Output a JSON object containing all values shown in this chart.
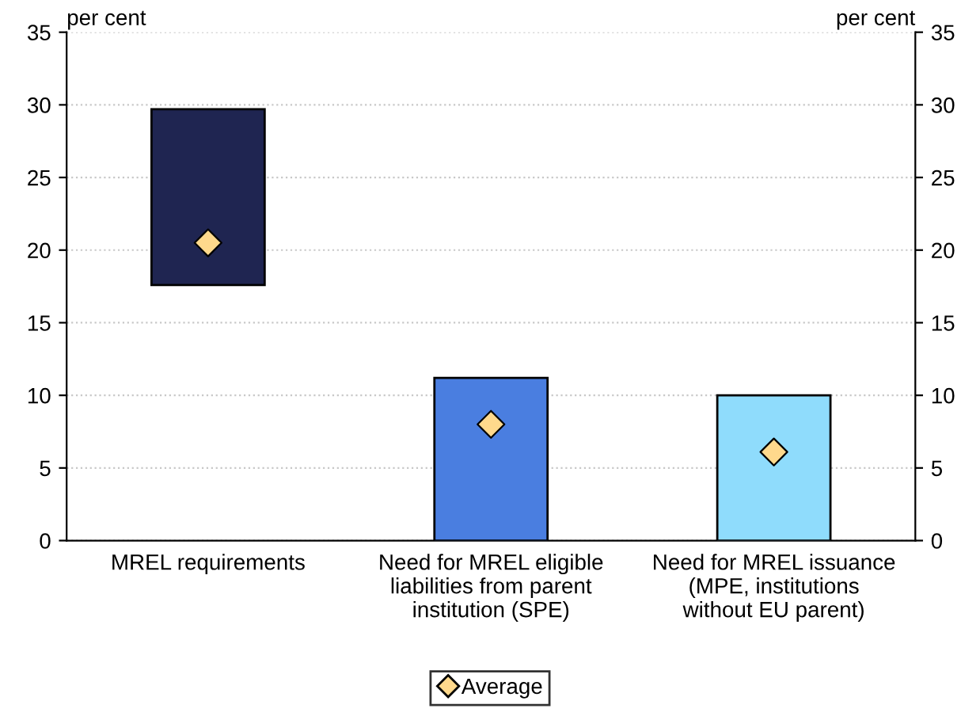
{
  "chart_data": {
    "type": "bar",
    "categories": [
      "MREL requirements",
      "Need for MREL eligible liabilities from parent institution (SPE)",
      "Need for MREL issuance (MPE, institutions without EU parent)"
    ],
    "series": [
      {
        "colors": [
          "#1f2551",
          "#4a7ee0",
          "#8fdcfc"
        ],
        "base": [
          17.6,
          0,
          0
        ],
        "values": [
          12.1,
          11.2,
          10.0
        ]
      },
      {
        "type": "scatter",
        "name": "Average",
        "color": "#ffd98c",
        "marker": "diamond",
        "values": [
          20.5,
          8.0,
          6.1
        ]
      }
    ],
    "ylabel": "per cent",
    "y2label": "per cent",
    "ylim": [
      0,
      35
    ],
    "yticks": [
      0,
      5,
      10,
      15,
      20,
      25,
      30,
      35
    ],
    "y2lim": [
      0,
      35
    ],
    "y2ticks": [
      0,
      5,
      10,
      15,
      20,
      25,
      30,
      35
    ],
    "grid": "y",
    "legend": "bottom"
  }
}
